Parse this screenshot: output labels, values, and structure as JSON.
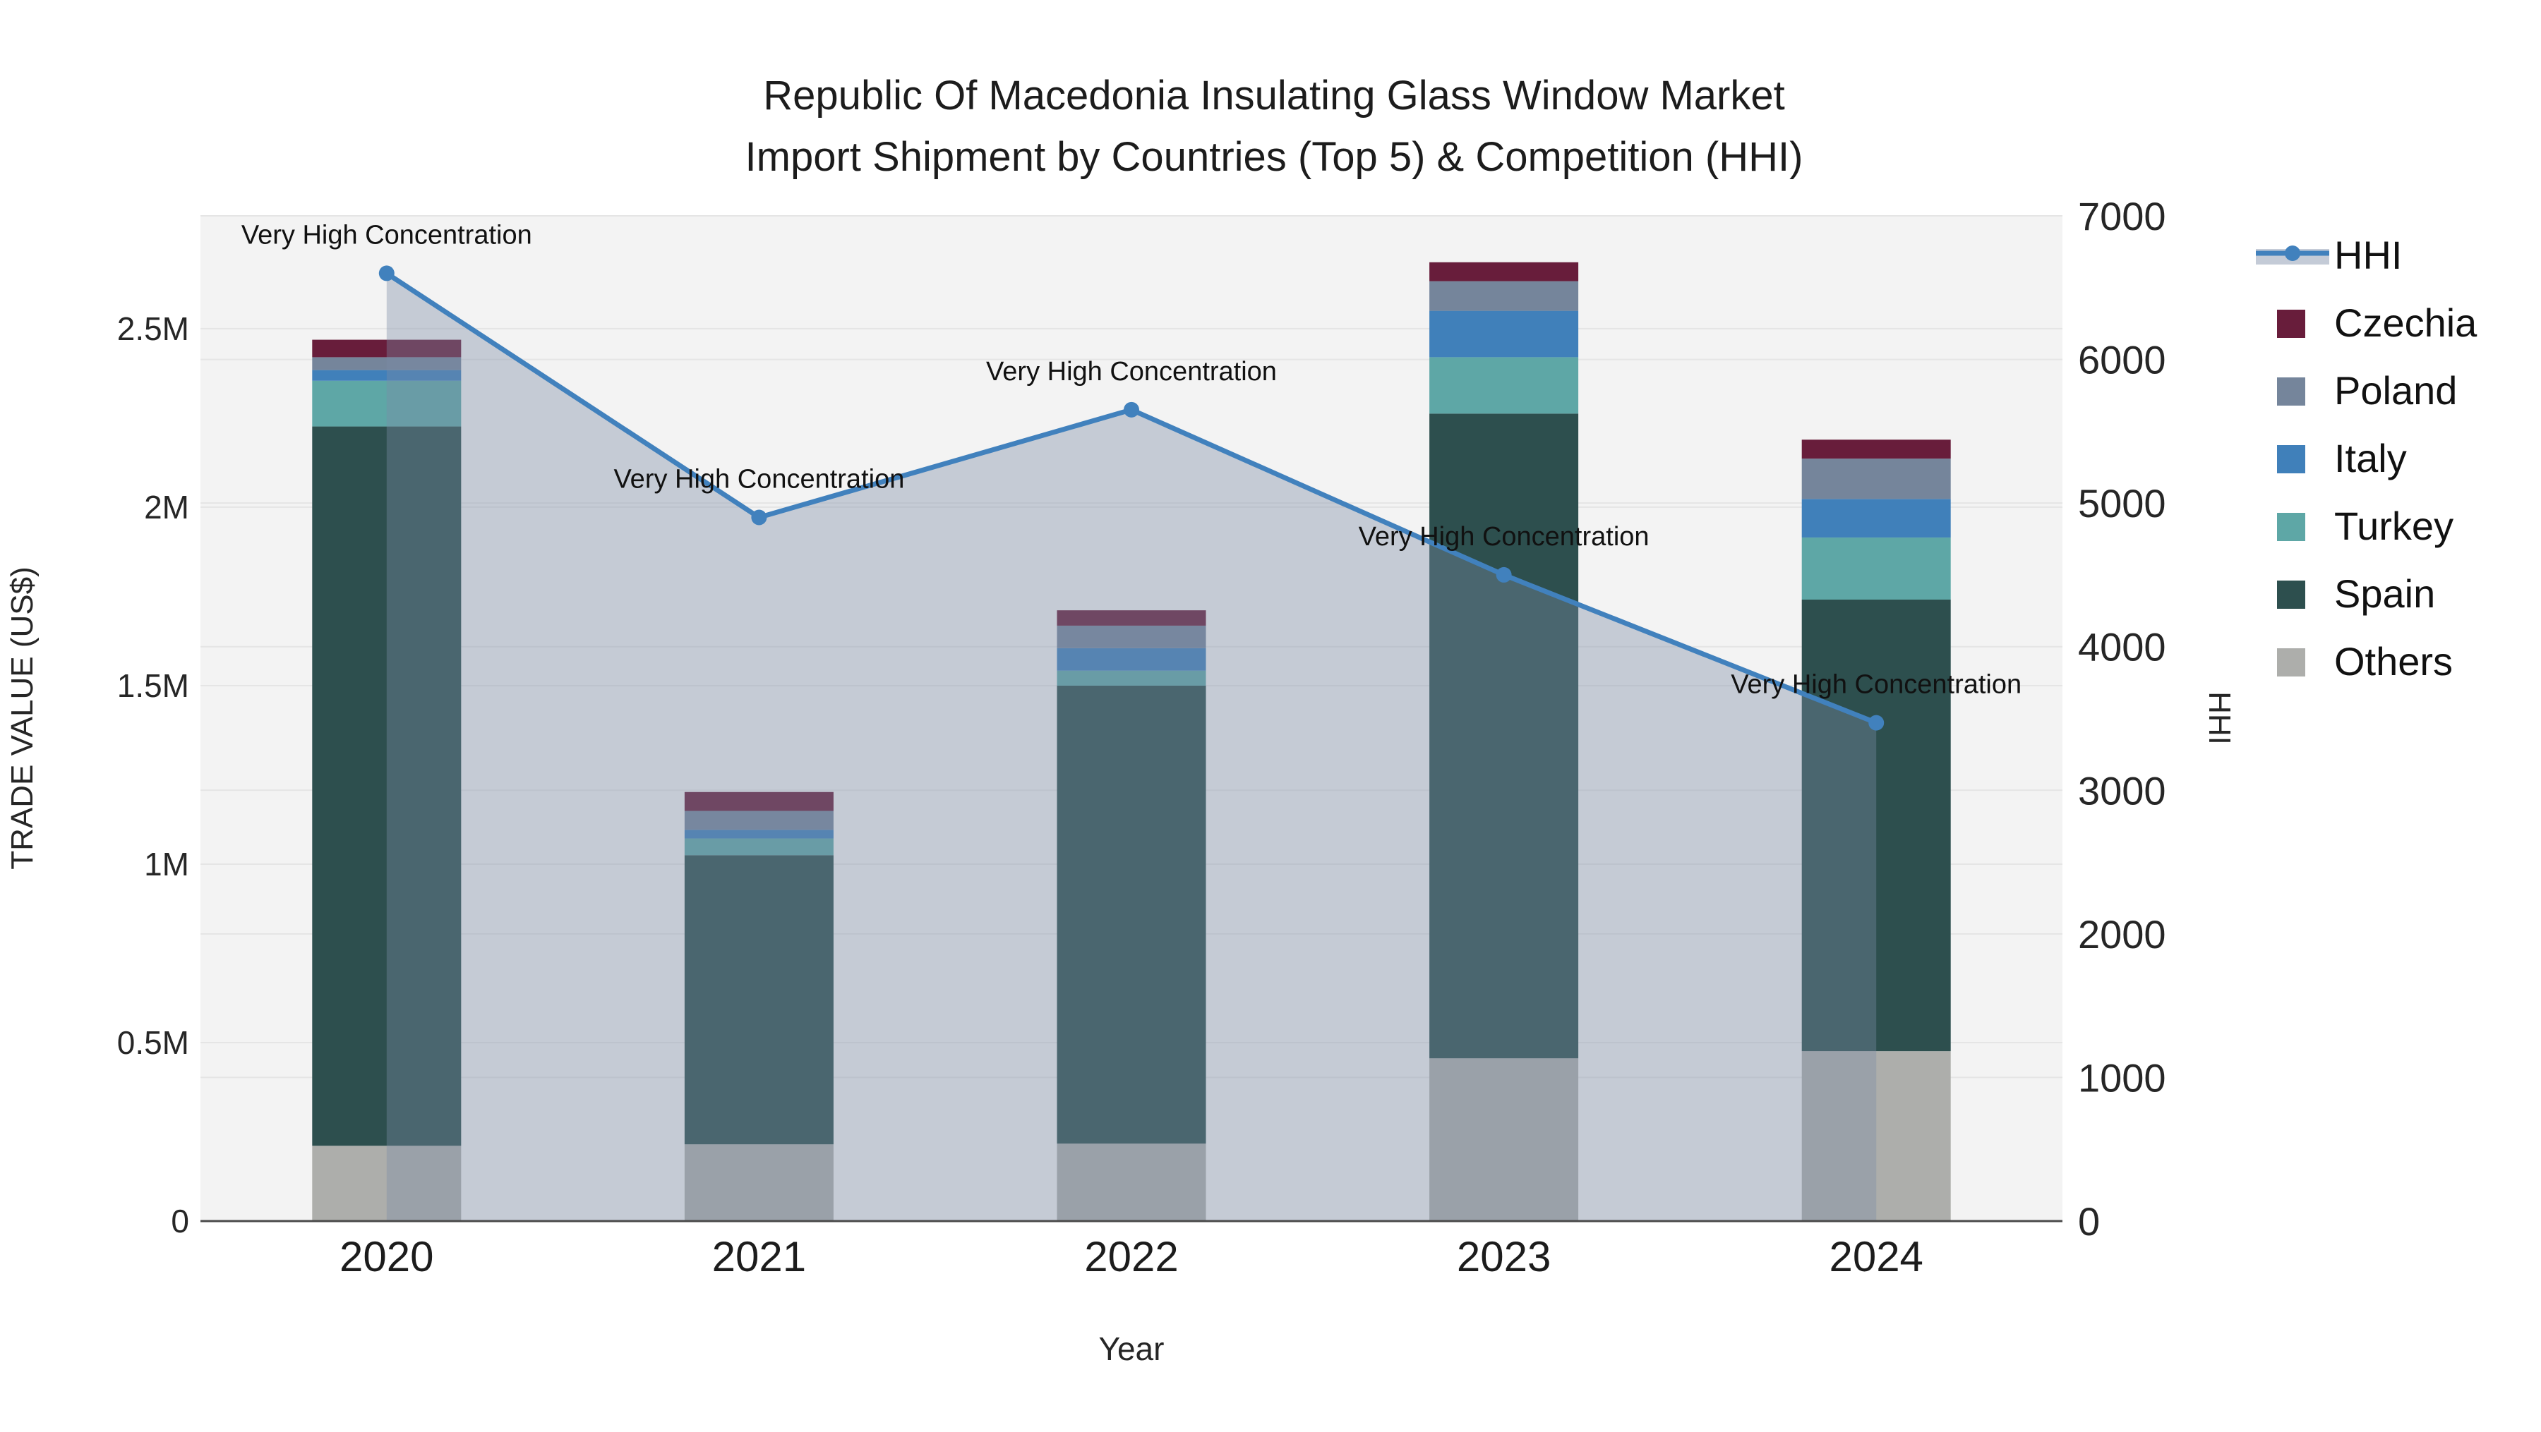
{
  "title": {
    "line1": "Republic Of Macedonia Insulating Glass Window Market",
    "line2": "Import Shipment by Countries (Top 5) & Competition (HHI)"
  },
  "chart_data": {
    "type": "bar",
    "subtype": "stacked-bars-with-line-on-secondary-axis",
    "categories": [
      2020,
      2021,
      2022,
      2023,
      2024
    ],
    "xlabel": "Year",
    "ylabel_left": "TRADE VALUE (US$)",
    "ylabel_right": "HHI",
    "ylim_left": [
      0,
      2816000
    ],
    "ylim_right": [
      0,
      7000
    ],
    "yticks_left": [
      {
        "value": 0,
        "label": "0"
      },
      {
        "value": 500000,
        "label": "0.5M"
      },
      {
        "value": 1000000,
        "label": "1M"
      },
      {
        "value": 1500000,
        "label": "1.5M"
      },
      {
        "value": 2000000,
        "label": "2M"
      },
      {
        "value": 2500000,
        "label": "2.5M"
      }
    ],
    "yticks_right": [
      {
        "value": 0,
        "label": "0"
      },
      {
        "value": 1000,
        "label": "1000"
      },
      {
        "value": 2000,
        "label": "2000"
      },
      {
        "value": 3000,
        "label": "3000"
      },
      {
        "value": 4000,
        "label": "4000"
      },
      {
        "value": 5000,
        "label": "5000"
      },
      {
        "value": 6000,
        "label": "6000"
      },
      {
        "value": 7000,
        "label": "7000"
      }
    ],
    "grid": true,
    "stack_order_bottom_to_top": [
      "Others",
      "Spain",
      "Turkey",
      "Italy",
      "Poland",
      "Czechia"
    ],
    "series": [
      {
        "name": "Others",
        "color": "#adaeab",
        "values": [
          211000,
          215000,
          217000,
          456000,
          476000
        ]
      },
      {
        "name": "Spain",
        "color": "#2d4f4e",
        "values": [
          2015000,
          810000,
          1283000,
          1806000,
          1265000
        ]
      },
      {
        "name": "Turkey",
        "color": "#5ea7a6",
        "values": [
          128000,
          47000,
          42000,
          158000,
          174000
        ]
      },
      {
        "name": "Italy",
        "color": "#4080ba",
        "values": [
          30000,
          24000,
          63000,
          130000,
          108000
        ]
      },
      {
        "name": "Poland",
        "color": "#75859b",
        "values": [
          36000,
          53000,
          63000,
          83000,
          113000
        ]
      },
      {
        "name": "Czechia",
        "color": "#681d3b",
        "values": [
          49000,
          53000,
          43000,
          53000,
          53000
        ]
      }
    ],
    "line_series": {
      "name": "HHI",
      "color": "#4181bd",
      "area_fill_color": "#7c8ba6",
      "area_fill_opacity": 0.38,
      "values": [
        6600,
        4900,
        5650,
        4500,
        3470
      ],
      "point_annotation": "Very High Concentration"
    },
    "legend": {
      "position": "right",
      "items": [
        "HHI",
        "Czechia",
        "Poland",
        "Italy",
        "Turkey",
        "Spain",
        "Others"
      ]
    },
    "colors": {
      "plot_background": "#f3f3f3",
      "gridline": "#e5e5e5",
      "axis_line": "#4a4a4a",
      "text": "#262626"
    }
  }
}
